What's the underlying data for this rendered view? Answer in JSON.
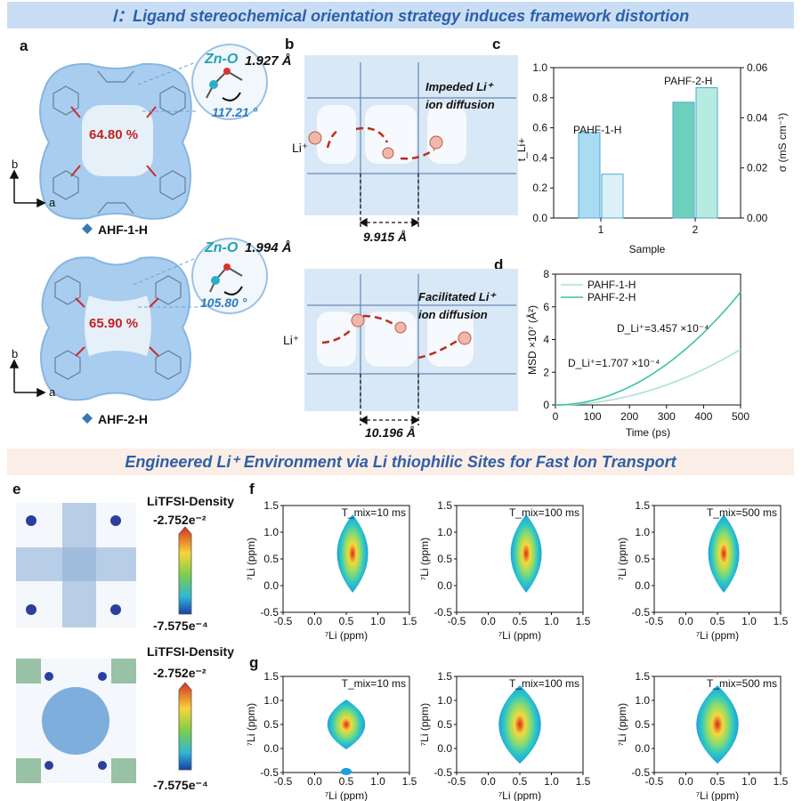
{
  "banner1": "Ⅰ：Ligand stereochemical orientation strategy induces framework distortion",
  "banner2": "Engineered Li⁺ Environment via Li thiophilic Sites for Fast Ion Transport",
  "panels": {
    "a": "a",
    "b": "b",
    "c": "c",
    "d": "d",
    "e": "e",
    "f": "f",
    "g": "g"
  },
  "panel_a": {
    "top": {
      "porosity": "64.80 %",
      "bond_label": "Zn-O",
      "bond_length": "1.927 Å",
      "angle": "117.21 °",
      "name": "AHF-1-H"
    },
    "bottom": {
      "porosity": "65.90 %",
      "bond_label": "Zn-O",
      "bond_length": "1.994 Å",
      "angle": "105.80 °",
      "name": "AHF-2-H"
    },
    "axis_b": "b",
    "axis_a": "a"
  },
  "panel_b": {
    "top": {
      "note_line1": "Impeded Li⁺",
      "note_line2": "ion diffusion",
      "ion": "Li⁺",
      "distance": "9.915 Å"
    },
    "bottom": {
      "note_line1": "Facilitated Li⁺",
      "note_line2": "ion  diffusion",
      "ion": "Li⁺",
      "distance": "10.196 Å"
    }
  },
  "chart_data": [
    {
      "type": "bar",
      "id": "c",
      "categories": [
        "1",
        "2"
      ],
      "series": [
        {
          "name": "t_Li+",
          "axis": "left",
          "values": [
            0.57,
            0.77
          ],
          "colors": [
            "#a9dcf3",
            "#6dd0bd"
          ]
        },
        {
          "name": "σ",
          "axis": "right",
          "values": [
            0.0175,
            0.052
          ],
          "colors": [
            "#dcf0fa",
            "#b6ebdf"
          ]
        }
      ],
      "bar_labels": [
        "PAHF-1-H",
        "PAHF-2-H"
      ],
      "xlabel": "Sample",
      "ylabel": "t_Li+",
      "ylabel_right": "σ (mS cm⁻¹)",
      "ylim": [
        0,
        1.0
      ],
      "ylim_right": [
        0,
        0.06
      ],
      "yticks": [
        "0.0",
        "0.2",
        "0.4",
        "0.6",
        "0.8",
        "1.0"
      ],
      "yticks_right": [
        "0.00",
        "0.02",
        "0.04",
        "0.06"
      ]
    },
    {
      "type": "line",
      "id": "d",
      "xlabel": "Time (ps)",
      "ylabel": "MSD ×10⁷ (Å²)",
      "xlim": [
        0,
        500
      ],
      "ylim": [
        0,
        8
      ],
      "xticks": [
        "0",
        "100",
        "200",
        "300",
        "400",
        "500"
      ],
      "yticks": [
        "0",
        "2",
        "4",
        "6",
        "8"
      ],
      "series": [
        {
          "name": "PAHF-1-H",
          "color": "#a6e3d8",
          "x": [
            0,
            100,
            200,
            300,
            400,
            500
          ],
          "y": [
            0,
            0.14,
            0.55,
            1.22,
            2.18,
            3.4
          ]
        },
        {
          "name": "PAHF-2-H",
          "color": "#3cc3a4",
          "x": [
            0,
            100,
            200,
            300,
            400,
            500
          ],
          "y": [
            0,
            0.28,
            1.1,
            2.48,
            4.4,
            6.9
          ]
        }
      ],
      "annotations": [
        "D_Li⁺=3.457 ×10⁻⁴",
        "D_Li⁺=1.707 ×10⁻⁴"
      ]
    }
  ],
  "panel_e": {
    "title": "LiTFSI-Density",
    "max": "-2.752e⁻²",
    "min": "-7.575e⁻⁴"
  },
  "nmr": {
    "xlabel": "⁷Li (ppm)",
    "ylabel": "⁷Li (ppm)",
    "xticks": [
      "-0.5",
      "0.0",
      "0.5",
      "1.0",
      "1.5"
    ],
    "yticks": [
      "1.5",
      "1.0",
      "0.5",
      "0.0",
      "-0.5"
    ],
    "tmix": [
      "T_mix=10 ms",
      "T_mix=100 ms",
      "T_mix=500 ms"
    ]
  }
}
